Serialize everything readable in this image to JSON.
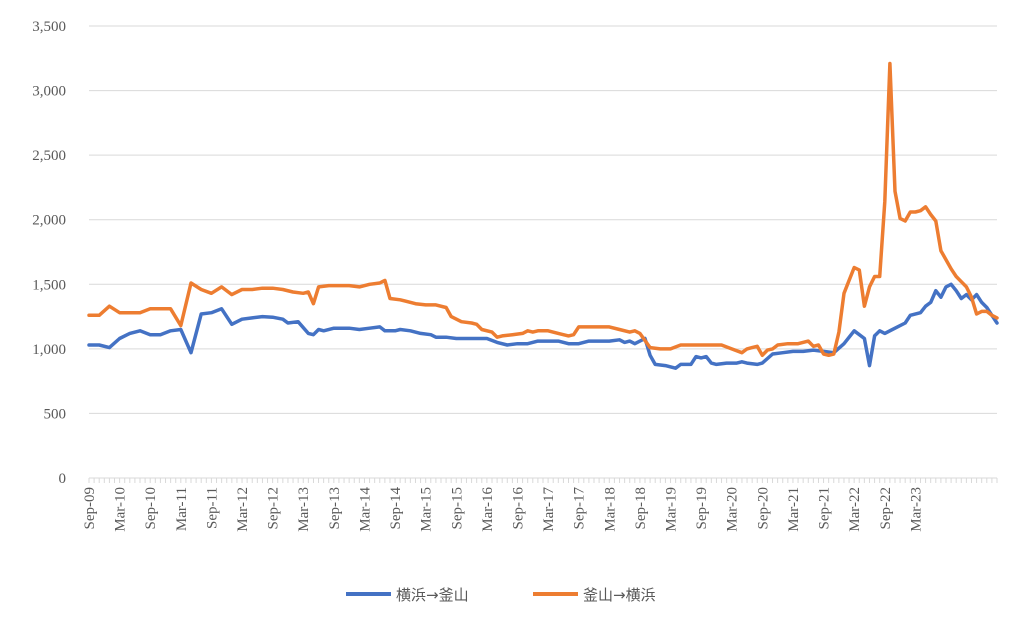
{
  "chart_data": {
    "type": "line",
    "title": "",
    "xlabel": "",
    "ylabel": "",
    "ylim": [
      0,
      3500
    ],
    "y_ticks": [
      0,
      500,
      1000,
      1500,
      2000,
      2500,
      3000,
      3500
    ],
    "y_tick_labels": [
      "0",
      "500",
      "1,000",
      "1,500",
      "2,000",
      "2,500",
      "3,000",
      "3,500"
    ],
    "x_tick_labels": [
      "Sep-09",
      "Mar-10",
      "Sep-10",
      "Mar-11",
      "Sep-11",
      "Mar-12",
      "Sep-12",
      "Mar-13",
      "Sep-13",
      "Mar-14",
      "Sep-14",
      "Mar-15",
      "Sep-15",
      "Mar-16",
      "Sep-16",
      "Mar-17",
      "Sep-17",
      "Mar-18",
      "Sep-18",
      "Mar-19",
      "Sep-19",
      "Mar-20",
      "Sep-20",
      "Mar-21",
      "Sep-21",
      "Mar-22",
      "Sep-22",
      "Mar-23"
    ],
    "x_start": "Sep-09",
    "grid": true,
    "legend_position": "bottom",
    "series": [
      {
        "name": "横浜→釜山",
        "color": "#4472C4",
        "points": [
          [
            0,
            1030
          ],
          [
            2,
            1030
          ],
          [
            4,
            1010
          ],
          [
            6,
            1080
          ],
          [
            8,
            1120
          ],
          [
            10,
            1140
          ],
          [
            12,
            1110
          ],
          [
            14,
            1110
          ],
          [
            16,
            1140
          ],
          [
            18,
            1150
          ],
          [
            20,
            970
          ],
          [
            22,
            1270
          ],
          [
            24,
            1280
          ],
          [
            26,
            1310
          ],
          [
            28,
            1190
          ],
          [
            30,
            1230
          ],
          [
            32,
            1240
          ],
          [
            34,
            1250
          ],
          [
            36,
            1245
          ],
          [
            38,
            1230
          ],
          [
            39,
            1200
          ],
          [
            41,
            1210
          ],
          [
            43,
            1120
          ],
          [
            44,
            1110
          ],
          [
            45,
            1150
          ],
          [
            46,
            1140
          ],
          [
            48,
            1160
          ],
          [
            51,
            1160
          ],
          [
            53,
            1150
          ],
          [
            55,
            1160
          ],
          [
            57,
            1170
          ],
          [
            58,
            1140
          ],
          [
            60,
            1140
          ],
          [
            61,
            1150
          ],
          [
            63,
            1140
          ],
          [
            65,
            1120
          ],
          [
            67,
            1110
          ],
          [
            68,
            1090
          ],
          [
            70,
            1090
          ],
          [
            72,
            1080
          ],
          [
            74,
            1080
          ],
          [
            76,
            1080
          ],
          [
            78,
            1080
          ],
          [
            80,
            1050
          ],
          [
            82,
            1030
          ],
          [
            84,
            1040
          ],
          [
            86,
            1040
          ],
          [
            88,
            1060
          ],
          [
            90,
            1060
          ],
          [
            92,
            1060
          ],
          [
            94,
            1040
          ],
          [
            96,
            1040
          ],
          [
            98,
            1060
          ],
          [
            100,
            1060
          ],
          [
            102,
            1060
          ],
          [
            104,
            1070
          ],
          [
            105,
            1050
          ],
          [
            106,
            1060
          ],
          [
            107,
            1040
          ],
          [
            109,
            1080
          ],
          [
            110,
            950
          ],
          [
            111,
            880
          ],
          [
            113,
            870
          ],
          [
            115,
            850
          ],
          [
            116,
            880
          ],
          [
            118,
            880
          ],
          [
            119,
            940
          ],
          [
            120,
            930
          ],
          [
            121,
            940
          ],
          [
            122,
            890
          ],
          [
            123,
            880
          ],
          [
            125,
            890
          ],
          [
            127,
            890
          ],
          [
            128,
            900
          ],
          [
            129,
            890
          ],
          [
            131,
            880
          ],
          [
            132,
            890
          ],
          [
            134,
            960
          ],
          [
            136,
            970
          ],
          [
            138,
            980
          ],
          [
            140,
            980
          ],
          [
            142,
            990
          ],
          [
            144,
            980
          ],
          [
            146,
            970
          ],
          [
            148,
            1040
          ],
          [
            150,
            1140
          ],
          [
            152,
            1080
          ],
          [
            153,
            870
          ],
          [
            154,
            1100
          ],
          [
            155,
            1140
          ],
          [
            156,
            1120
          ],
          [
            158,
            1160
          ],
          [
            160,
            1200
          ],
          [
            161,
            1260
          ],
          [
            163,
            1280
          ],
          [
            164,
            1330
          ],
          [
            165,
            1360
          ],
          [
            166,
            1450
          ],
          [
            167,
            1400
          ],
          [
            168,
            1480
          ],
          [
            169,
            1500
          ],
          [
            170,
            1450
          ],
          [
            171,
            1390
          ],
          [
            172,
            1420
          ],
          [
            173,
            1380
          ],
          [
            174,
            1420
          ],
          [
            175,
            1360
          ],
          [
            176,
            1320
          ],
          [
            177,
            1260
          ],
          [
            178,
            1200
          ]
        ]
      },
      {
        "name": "釜山→横浜",
        "color": "#ED7D31",
        "points": [
          [
            0,
            1260
          ],
          [
            2,
            1260
          ],
          [
            4,
            1330
          ],
          [
            6,
            1280
          ],
          [
            8,
            1280
          ],
          [
            10,
            1280
          ],
          [
            12,
            1310
          ],
          [
            14,
            1310
          ],
          [
            16,
            1310
          ],
          [
            18,
            1180
          ],
          [
            20,
            1510
          ],
          [
            22,
            1460
          ],
          [
            24,
            1430
          ],
          [
            26,
            1480
          ],
          [
            28,
            1420
          ],
          [
            30,
            1460
          ],
          [
            32,
            1460
          ],
          [
            34,
            1470
          ],
          [
            36,
            1470
          ],
          [
            38,
            1460
          ],
          [
            40,
            1440
          ],
          [
            42,
            1430
          ],
          [
            43,
            1440
          ],
          [
            44,
            1350
          ],
          [
            45,
            1480
          ],
          [
            47,
            1490
          ],
          [
            49,
            1490
          ],
          [
            51,
            1490
          ],
          [
            53,
            1480
          ],
          [
            55,
            1500
          ],
          [
            57,
            1510
          ],
          [
            58,
            1530
          ],
          [
            59,
            1390
          ],
          [
            61,
            1380
          ],
          [
            62,
            1370
          ],
          [
            64,
            1350
          ],
          [
            66,
            1340
          ],
          [
            68,
            1340
          ],
          [
            70,
            1320
          ],
          [
            71,
            1250
          ],
          [
            73,
            1210
          ],
          [
            75,
            1200
          ],
          [
            76,
            1190
          ],
          [
            77,
            1150
          ],
          [
            79,
            1130
          ],
          [
            80,
            1090
          ],
          [
            81,
            1100
          ],
          [
            83,
            1110
          ],
          [
            85,
            1120
          ],
          [
            86,
            1140
          ],
          [
            87,
            1130
          ],
          [
            88,
            1140
          ],
          [
            90,
            1140
          ],
          [
            92,
            1120
          ],
          [
            94,
            1100
          ],
          [
            95,
            1110
          ],
          [
            96,
            1170
          ],
          [
            98,
            1170
          ],
          [
            100,
            1170
          ],
          [
            102,
            1170
          ],
          [
            104,
            1150
          ],
          [
            106,
            1130
          ],
          [
            107,
            1140
          ],
          [
            108,
            1120
          ],
          [
            110,
            1010
          ],
          [
            112,
            1000
          ],
          [
            114,
            1000
          ],
          [
            116,
            1030
          ],
          [
            118,
            1030
          ],
          [
            120,
            1030
          ],
          [
            122,
            1030
          ],
          [
            124,
            1030
          ],
          [
            126,
            1000
          ],
          [
            128,
            970
          ],
          [
            129,
            1000
          ],
          [
            130,
            1010
          ],
          [
            131,
            1020
          ],
          [
            132,
            950
          ],
          [
            133,
            990
          ],
          [
            134,
            1000
          ],
          [
            135,
            1030
          ],
          [
            137,
            1040
          ],
          [
            139,
            1040
          ],
          [
            141,
            1060
          ],
          [
            142,
            1020
          ],
          [
            143,
            1030
          ],
          [
            144,
            960
          ],
          [
            145,
            950
          ],
          [
            146,
            960
          ],
          [
            147,
            1130
          ],
          [
            148,
            1430
          ],
          [
            149,
            1530
          ],
          [
            150,
            1630
          ],
          [
            151,
            1610
          ],
          [
            152,
            1330
          ],
          [
            153,
            1480
          ],
          [
            154,
            1560
          ],
          [
            155,
            1560
          ],
          [
            156,
            2140
          ],
          [
            157,
            3210
          ],
          [
            158,
            2220
          ],
          [
            159,
            2010
          ],
          [
            160,
            1990
          ],
          [
            161,
            2060
          ],
          [
            162,
            2060
          ],
          [
            163,
            2070
          ],
          [
            164,
            2100
          ],
          [
            165,
            2040
          ],
          [
            166,
            1990
          ],
          [
            167,
            1760
          ],
          [
            168,
            1690
          ],
          [
            169,
            1620
          ],
          [
            170,
            1560
          ],
          [
            171,
            1520
          ],
          [
            172,
            1480
          ],
          [
            173,
            1400
          ],
          [
            174,
            1270
          ],
          [
            175,
            1290
          ],
          [
            176,
            1290
          ],
          [
            177,
            1260
          ],
          [
            178,
            1240
          ]
        ]
      }
    ]
  }
}
